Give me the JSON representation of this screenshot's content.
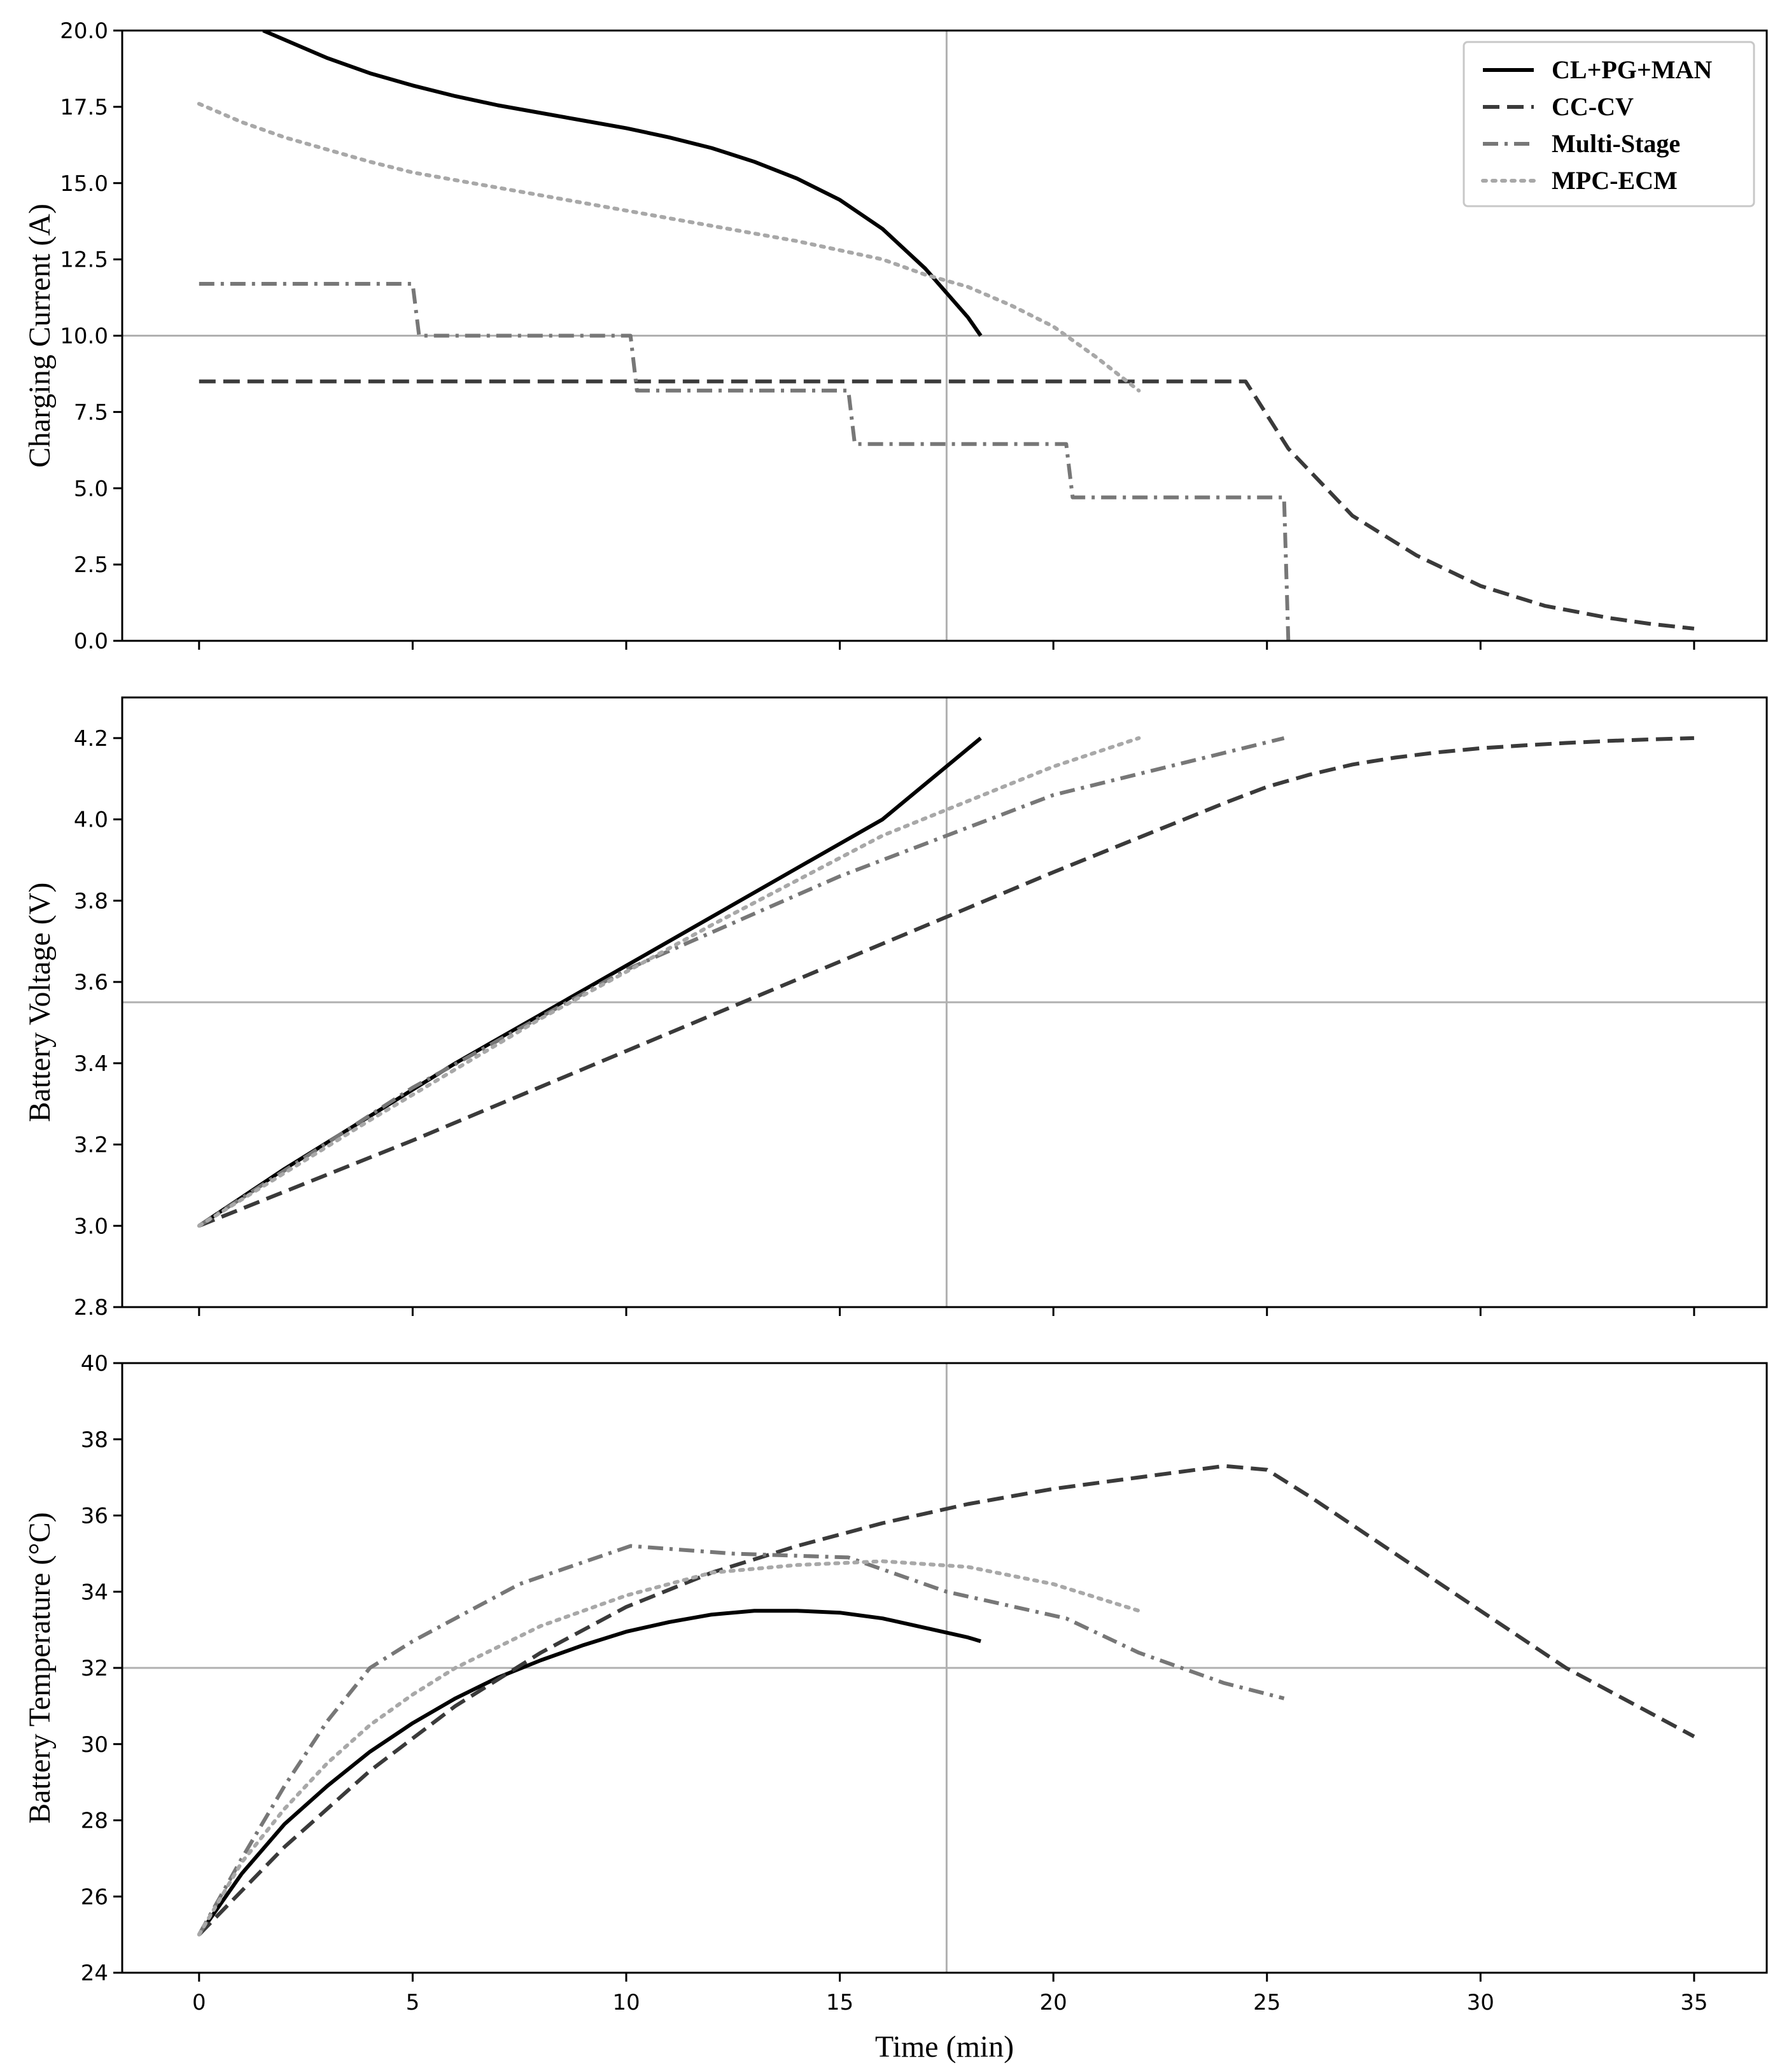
{
  "xlabel": "Time (min)",
  "x_ticks": [
    "0",
    "5",
    "10",
    "15",
    "20",
    "25",
    "30",
    "35"
  ],
  "legend": [
    {
      "name": "CL+PG+MAN",
      "style": "solid",
      "color": "#000000"
    },
    {
      "name": "CC-CV",
      "style": "dashed",
      "color": "#3a3a3a"
    },
    {
      "name": "Multi-Stage",
      "style": "dashdot",
      "color": "#777777"
    },
    {
      "name": "MPC-ECM",
      "style": "dotted",
      "color": "#a8a8a8"
    }
  ],
  "chart_data": [
    {
      "type": "line",
      "ylabel": "Charging Current (A)",
      "xlim": [
        -1.8,
        36.7
      ],
      "ylim": [
        0,
        20
      ],
      "y_ticks": [
        "0.0",
        "2.5",
        "5.0",
        "7.5",
        "10.0",
        "12.5",
        "15.0",
        "17.5",
        "20.0"
      ],
      "crosshair": {
        "x": 17.5,
        "y": 10.0
      },
      "series": [
        {
          "name": "CL+PG+MAN",
          "x": [
            1.5,
            2,
            3,
            4,
            5,
            6,
            7,
            8,
            9,
            10,
            11,
            12,
            13,
            14,
            15,
            16,
            17,
            17.5,
            18,
            18.3
          ],
          "y": [
            20.0,
            19.7,
            19.1,
            18.6,
            18.2,
            17.85,
            17.55,
            17.3,
            17.05,
            16.8,
            16.5,
            16.15,
            15.7,
            15.15,
            14.45,
            13.5,
            12.2,
            11.4,
            10.6,
            10.0
          ]
        },
        {
          "name": "CC-CV",
          "x": [
            0,
            24.5,
            25.5,
            27,
            28.5,
            30,
            31.5,
            33,
            34,
            35
          ],
          "y": [
            8.5,
            8.5,
            6.3,
            4.1,
            2.8,
            1.8,
            1.15,
            0.75,
            0.55,
            0.4
          ]
        },
        {
          "name": "Multi-Stage",
          "x": [
            0,
            5.0,
            5.15,
            10.1,
            10.25,
            15.2,
            15.35,
            20.3,
            20.45,
            25.4,
            25.5
          ],
          "y": [
            11.7,
            11.7,
            10.0,
            10.0,
            8.2,
            8.2,
            6.45,
            6.45,
            4.7,
            4.7,
            0.0
          ]
        },
        {
          "name": "MPC-ECM",
          "x": [
            0,
            1,
            2,
            3,
            4,
            5,
            6,
            8,
            10,
            12,
            14,
            16,
            17,
            18,
            19,
            20,
            21,
            22
          ],
          "y": [
            17.6,
            17.0,
            16.5,
            16.1,
            15.7,
            15.35,
            15.1,
            14.6,
            14.1,
            13.6,
            13.1,
            12.5,
            12.0,
            11.6,
            11.0,
            10.3,
            9.3,
            8.2
          ]
        }
      ]
    },
    {
      "type": "line",
      "ylabel": "Battery Voltage (V)",
      "xlim": [
        -1.8,
        36.7
      ],
      "ylim": [
        2.8,
        4.3
      ],
      "y_ticks": [
        "2.8",
        "3.0",
        "3.2",
        "3.4",
        "3.6",
        "3.8",
        "4.0",
        "4.2"
      ],
      "crosshair": {
        "x": 17.5,
        "y": 3.55
      },
      "series": [
        {
          "name": "CL+PG+MAN",
          "x": [
            0,
            2,
            4,
            6,
            8,
            10,
            12,
            14,
            16,
            18.3
          ],
          "y": [
            3.0,
            3.14,
            3.27,
            3.4,
            3.52,
            3.64,
            3.76,
            3.88,
            4.0,
            4.2
          ]
        },
        {
          "name": "CC-CV",
          "x": [
            0,
            5,
            10,
            15,
            20,
            24,
            25,
            26,
            27,
            28,
            29,
            30,
            31,
            32,
            33,
            34,
            35
          ],
          "y": [
            3.0,
            3.21,
            3.43,
            3.65,
            3.87,
            4.04,
            4.08,
            4.11,
            4.135,
            4.152,
            4.165,
            4.175,
            4.182,
            4.188,
            4.193,
            4.197,
            4.2
          ]
        },
        {
          "name": "Multi-Stage",
          "x": [
            0,
            5,
            10,
            15,
            20,
            25.4
          ],
          "y": [
            3.0,
            3.34,
            3.63,
            3.86,
            4.06,
            4.2
          ]
        },
        {
          "name": "MPC-ECM",
          "x": [
            0,
            4,
            8,
            12,
            16,
            20,
            22
          ],
          "y": [
            3.0,
            3.26,
            3.51,
            3.74,
            3.96,
            4.13,
            4.2
          ]
        }
      ]
    },
    {
      "type": "line",
      "ylabel": "Battery Temperature (°C)",
      "xlim": [
        -1.8,
        36.7
      ],
      "ylim": [
        24,
        40
      ],
      "y_ticks": [
        "24",
        "26",
        "28",
        "30",
        "32",
        "34",
        "36",
        "38",
        "40"
      ],
      "crosshair": {
        "x": 17.5,
        "y": 32
      },
      "series": [
        {
          "name": "CL+PG+MAN",
          "x": [
            0,
            1,
            2,
            3,
            4,
            5,
            6,
            7,
            8,
            9,
            10,
            11,
            12,
            13,
            14,
            15,
            16,
            17,
            18,
            18.3
          ],
          "y": [
            25.0,
            26.6,
            27.9,
            28.9,
            29.8,
            30.55,
            31.2,
            31.75,
            32.2,
            32.6,
            32.95,
            33.2,
            33.4,
            33.5,
            33.5,
            33.45,
            33.3,
            33.05,
            32.8,
            32.7
          ]
        },
        {
          "name": "CC-CV",
          "x": [
            0,
            2,
            4,
            6,
            8,
            10,
            12,
            14,
            16,
            18,
            20,
            22,
            24,
            25,
            26,
            28,
            30,
            32,
            34,
            35
          ],
          "y": [
            25.0,
            27.3,
            29.3,
            31.0,
            32.4,
            33.6,
            34.5,
            35.2,
            35.8,
            36.3,
            36.7,
            37.0,
            37.3,
            37.2,
            36.5,
            35.0,
            33.5,
            32.0,
            30.8,
            30.2
          ]
        },
        {
          "name": "Multi-Stage",
          "x": [
            0,
            1,
            2,
            3,
            4,
            5,
            7.5,
            10.1,
            12.5,
            15.2,
            17.5,
            20.3,
            22,
            24,
            25.4
          ],
          "y": [
            25.0,
            27.0,
            28.9,
            30.6,
            32.0,
            32.7,
            34.2,
            35.2,
            35.0,
            34.9,
            34.0,
            33.3,
            32.4,
            31.6,
            31.2
          ]
        },
        {
          "name": "MPC-ECM",
          "x": [
            0,
            1,
            2,
            3,
            4,
            5,
            6,
            8,
            10,
            12,
            14,
            16,
            18,
            20,
            22
          ],
          "y": [
            25.0,
            26.9,
            28.3,
            29.5,
            30.5,
            31.3,
            32.0,
            33.1,
            33.9,
            34.5,
            34.7,
            34.8,
            34.65,
            34.2,
            33.5
          ]
        }
      ]
    }
  ]
}
